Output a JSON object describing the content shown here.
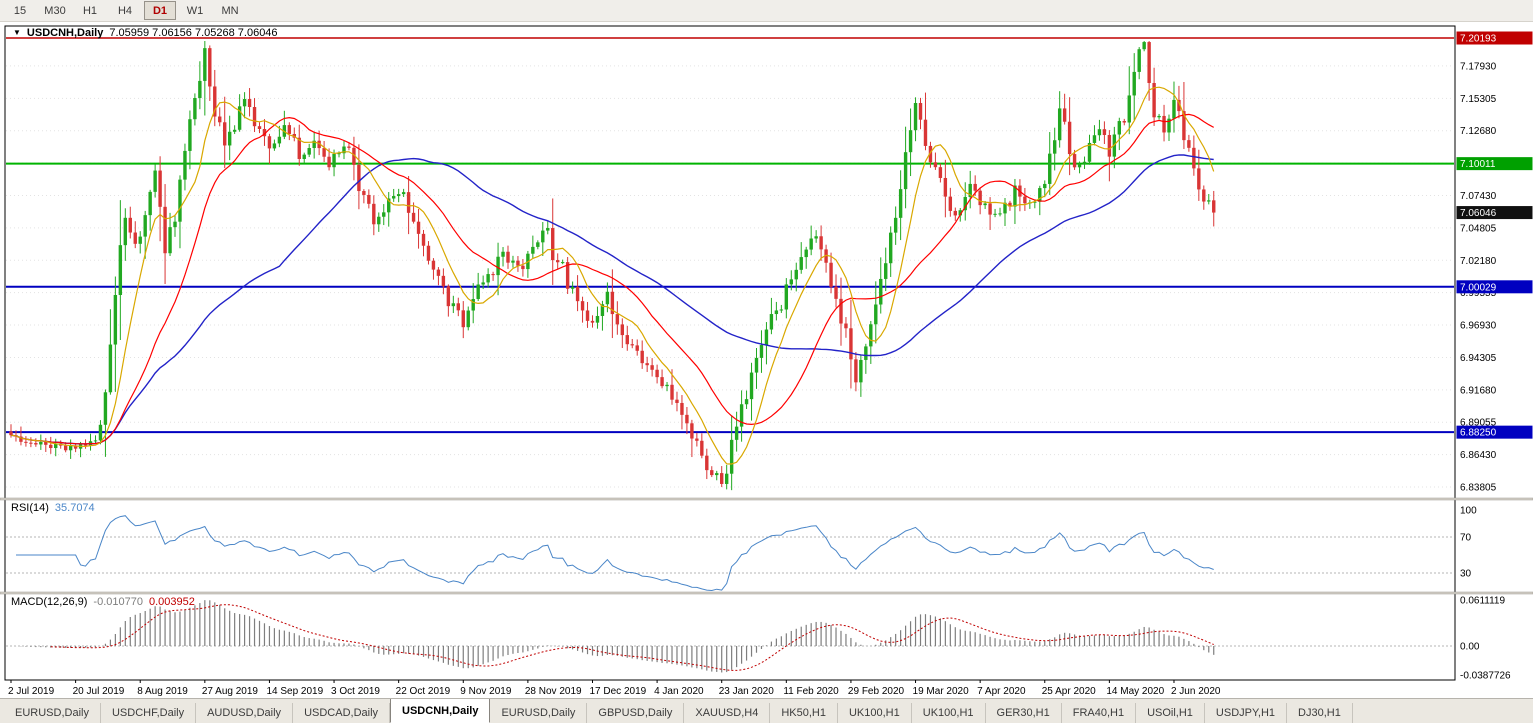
{
  "toolbar": {
    "timeframes": [
      "15",
      "M30",
      "H1",
      "H4",
      "D1",
      "W1",
      "MN"
    ],
    "active": "D1"
  },
  "chart": {
    "menu_marker": "▼",
    "title_symbol": "USDCNH,Daily",
    "ohlc": "7.05959 7.06156 7.05268 7.06046",
    "bull_color": "#21A821",
    "bear_color": "#D93535",
    "grid_color": "#E3E3E3"
  },
  "price_axis": {
    "labels": [
      "7.17930",
      "7.15305",
      "7.12680",
      "7.10055",
      "7.07430",
      "7.04805",
      "7.02180",
      "6.99555",
      "6.96930",
      "6.94305",
      "6.91680",
      "6.89055",
      "6.86430",
      "6.83805"
    ],
    "badges": [
      {
        "text": "7.20193",
        "color": "#C00000"
      },
      {
        "text": "7.10011",
        "color": "#00A000"
      },
      {
        "text": "7.06046",
        "color": "#101010"
      },
      {
        "text": "7.00029",
        "color": "#0000C0"
      },
      {
        "text": "6.88250",
        "color": "#0000C0"
      }
    ]
  },
  "hlines": [
    {
      "price": 7.20193,
      "color": "#C00000",
      "width": 1.4
    },
    {
      "price": 7.10011,
      "color": "#00B400",
      "width": 2
    },
    {
      "price": 7.00029,
      "color": "#0000C0",
      "width": 2
    },
    {
      "price": 6.8825,
      "color": "#0000C0",
      "width": 2
    }
  ],
  "time_axis": {
    "labels": [
      "2 Jul 2019",
      "20 Jul 2019",
      "8 Aug 2019",
      "27 Aug 2019",
      "14 Sep 2019",
      "3 Oct 2019",
      "22 Oct 2019",
      "9 Nov 2019",
      "28 Nov 2019",
      "17 Dec 2019",
      "4 Jan 2020",
      "23 Jan 2020",
      "11 Feb 2020",
      "29 Feb 2020",
      "19 Mar 2020",
      "7 Apr 2020",
      "25 Apr 2020",
      "14 May 2020",
      "2 Jun 2020"
    ],
    "days_per_tick": 13
  },
  "rsi": {
    "label": "RSI(14)",
    "value": "35.7074",
    "color": "#4A86C8",
    "levels": [
      {
        "text": "100",
        "value": 100
      },
      {
        "text": "70",
        "value": 70
      },
      {
        "text": "30",
        "value": 30
      }
    ]
  },
  "macd": {
    "label": "MACD(12,26,9)",
    "value_main": "-0.010770",
    "value_signal": "0.003952",
    "histogram_color": "#7E7E7E",
    "signal_color": "#C00000",
    "axis": [
      {
        "text": "0.0611119",
        "value": 0.0611119
      },
      {
        "text": "0.00",
        "value": 0
      },
      {
        "text": "-0.0387726",
        "value": -0.0387726
      }
    ]
  },
  "tabs": {
    "items": [
      "EURUSD,Daily",
      "USDCHF,Daily",
      "AUDUSD,Daily",
      "USDCAD,Daily",
      "USDCNH,Daily",
      "EURUSD,Daily",
      "GBPUSD,Daily",
      "XAUUSD,H4",
      "HK50,H1",
      "UK100,H1",
      "UK100,H1",
      "GER30,H1",
      "FRA40,H1",
      "USOil,H1",
      "USDJPY,H1",
      "DJ30,H1"
    ],
    "active_index": 4
  },
  "chart_data": {
    "type": "candlestick",
    "symbol": "USDCNH",
    "timeframe": "Daily",
    "title": "USDCNH,Daily",
    "ohlc_current": {
      "open": 7.05959,
      "high": 7.06156,
      "low": 7.05268,
      "close": 7.06046
    },
    "days": 243,
    "x_range": [
      "2 Jul 2019",
      "8 Jun 2020"
    ],
    "price_range": [
      6.83,
      7.2149
    ],
    "horizontal_levels": [
      7.20193,
      7.10011,
      7.00029,
      6.8825
    ],
    "close_anchors": [
      [
        0,
        6.878
      ],
      [
        6,
        6.872
      ],
      [
        12,
        6.869
      ],
      [
        16,
        6.874
      ],
      [
        18,
        6.89
      ],
      [
        20,
        6.948
      ],
      [
        22,
        7.035
      ],
      [
        23,
        7.058
      ],
      [
        25,
        7.032
      ],
      [
        27,
        7.062
      ],
      [
        29,
        7.095
      ],
      [
        31,
        7.035
      ],
      [
        33,
        7.052
      ],
      [
        35,
        7.108
      ],
      [
        37,
        7.152
      ],
      [
        39,
        7.188
      ],
      [
        41,
        7.142
      ],
      [
        43,
        7.112
      ],
      [
        45,
        7.128
      ],
      [
        47,
        7.15
      ],
      [
        49,
        7.128
      ],
      [
        52,
        7.116
      ],
      [
        55,
        7.128
      ],
      [
        58,
        7.108
      ],
      [
        61,
        7.118
      ],
      [
        64,
        7.098
      ],
      [
        67,
        7.118
      ],
      [
        70,
        7.082
      ],
      [
        73,
        7.058
      ],
      [
        76,
        7.068
      ],
      [
        79,
        7.078
      ],
      [
        82,
        7.038
      ],
      [
        85,
        7.012
      ],
      [
        88,
        6.988
      ],
      [
        91,
        6.972
      ],
      [
        93,
        6.998
      ],
      [
        96,
        7.008
      ],
      [
        99,
        7.028
      ],
      [
        102,
        7.015
      ],
      [
        105,
        7.03
      ],
      [
        107,
        7.052
      ],
      [
        109,
        7.028
      ],
      [
        111,
        7.015
      ],
      [
        114,
        6.982
      ],
      [
        117,
        6.972
      ],
      [
        120,
        6.992
      ],
      [
        123,
        6.96
      ],
      [
        126,
        6.952
      ],
      [
        129,
        6.93
      ],
      [
        132,
        6.916
      ],
      [
        135,
        6.9
      ],
      [
        138,
        6.87
      ],
      [
        141,
        6.85
      ],
      [
        143,
        6.842
      ],
      [
        145,
        6.87
      ],
      [
        147,
        6.906
      ],
      [
        150,
        6.936
      ],
      [
        153,
        6.972
      ],
      [
        156,
        6.998
      ],
      [
        159,
        7.018
      ],
      [
        161,
        7.042
      ],
      [
        164,
        7.022
      ],
      [
        166,
        6.992
      ],
      [
        168,
        6.962
      ],
      [
        170,
        6.93
      ],
      [
        172,
        6.952
      ],
      [
        174,
        6.984
      ],
      [
        176,
        7.024
      ],
      [
        178,
        7.062
      ],
      [
        180,
        7.105
      ],
      [
        182,
        7.155
      ],
      [
        184,
        7.112
      ],
      [
        187,
        7.088
      ],
      [
        190,
        7.06
      ],
      [
        193,
        7.082
      ],
      [
        196,
        7.066
      ],
      [
        199,
        7.056
      ],
      [
        202,
        7.078
      ],
      [
        205,
        7.066
      ],
      [
        208,
        7.088
      ],
      [
        211,
        7.145
      ],
      [
        213,
        7.108
      ],
      [
        215,
        7.096
      ],
      [
        217,
        7.118
      ],
      [
        219,
        7.128
      ],
      [
        221,
        7.106
      ],
      [
        223,
        7.128
      ],
      [
        225,
        7.15
      ],
      [
        227,
        7.186
      ],
      [
        228,
        7.196
      ],
      [
        230,
        7.142
      ],
      [
        232,
        7.126
      ],
      [
        234,
        7.148
      ],
      [
        236,
        7.126
      ],
      [
        238,
        7.09
      ],
      [
        240,
        7.07
      ],
      [
        242,
        7.06046
      ]
    ],
    "moving_averages": [
      {
        "period": 8,
        "color": "#D9A800"
      },
      {
        "period": 21,
        "color": "#FF0000"
      },
      {
        "period": 55,
        "color": "#2323C8"
      }
    ],
    "indicators": [
      {
        "name": "RSI",
        "period": 14,
        "current": 35.7074,
        "levels": [
          30,
          70
        ],
        "range": [
          0,
          100
        ]
      },
      {
        "name": "MACD",
        "fast": 12,
        "slow": 26,
        "signal": 9,
        "current_main": -0.01077,
        "current_signal": 0.003952,
        "axis_max": 0.0611119,
        "axis_min": -0.0387726
      }
    ]
  }
}
